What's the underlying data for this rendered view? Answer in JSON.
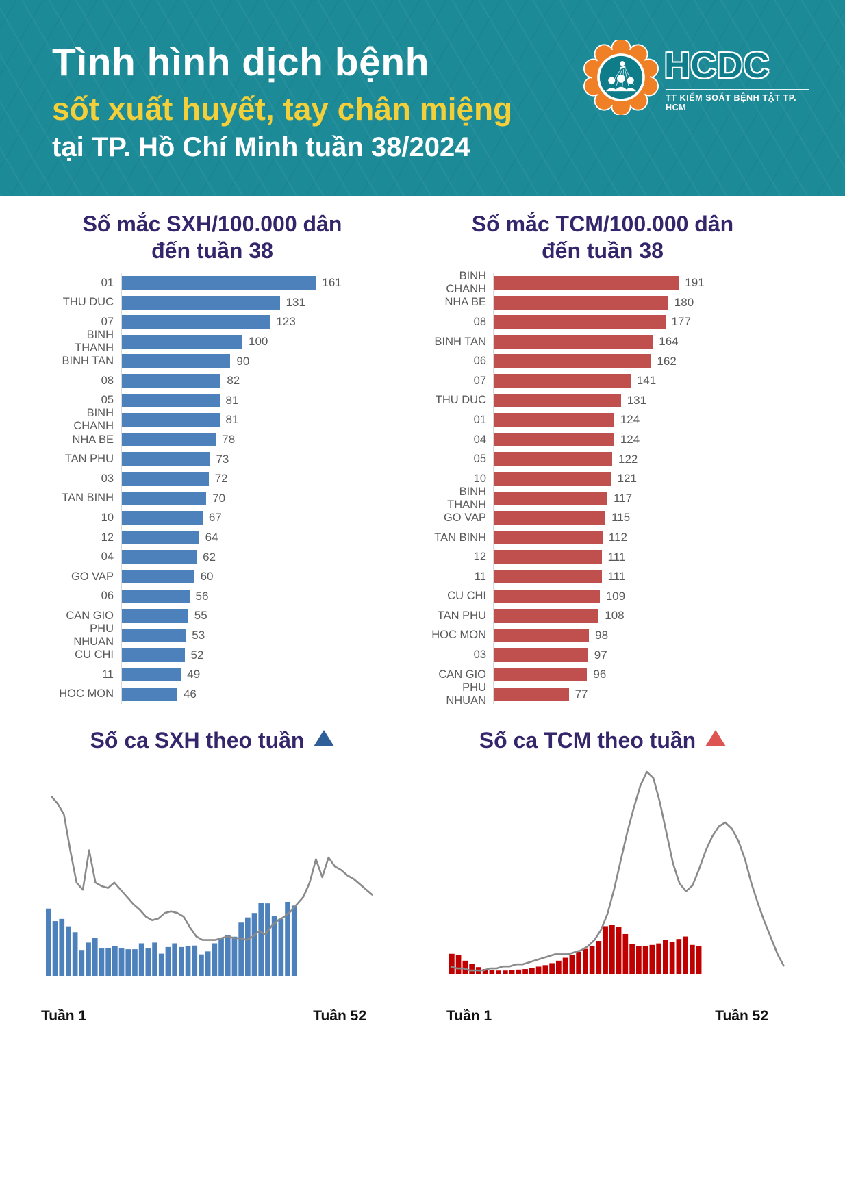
{
  "header": {
    "title_line1": "Tình hình dịch bệnh",
    "title_line2": "sốt xuất huyết, tay chân miệng",
    "title_line3": "tại TP. Hồ Chí Minh tuần 38/2024",
    "logo": {
      "name": "HCDC",
      "subtitle": "TT KIỂM SOÁT BỆNH TẬT TP. HCM",
      "mark": "people-group-icon"
    }
  },
  "colors": {
    "header_teal": "#1d8a97",
    "title_yellow": "#f3cf3a",
    "title_purple": "#35256b",
    "bar_blue": "#4d81bc",
    "bar_red_muted": "#c0504d",
    "bar_red_deep": "#c00000",
    "trend_line_gray": "#8a8a8a",
    "label_gray": "#595959",
    "triangle_blue": "#2f5f98",
    "triangle_red": "#dd5452",
    "logo_orange": "#f08026",
    "logo_teal": "#0e7c8a"
  },
  "chart_data": [
    {
      "type": "bar",
      "orientation": "horizontal",
      "title_line1": "Số mắc SXH/100.000 dân",
      "title_line2": "đến tuần 38",
      "categories": [
        "01",
        "THU DUC",
        "07",
        "BINH THANH",
        "BINH TAN",
        "08",
        "05",
        "BINH CHANH",
        "NHA BE",
        "TAN PHU",
        "03",
        "TAN BINH",
        "10",
        "12",
        "04",
        "GO VAP",
        "06",
        "CAN GIO",
        "PHU NHUAN",
        "CU CHI",
        "11",
        "HOC MON"
      ],
      "values": [
        161,
        131,
        123,
        100,
        90,
        82,
        81,
        81,
        78,
        73,
        72,
        70,
        67,
        64,
        62,
        60,
        56,
        55,
        53,
        52,
        49,
        46
      ],
      "bar_color": "#4d81bc",
      "xlim": [
        0,
        200
      ],
      "grid": false,
      "value_labels": true
    },
    {
      "type": "bar",
      "orientation": "horizontal",
      "title_line1": "Số mắc TCM/100.000 dân",
      "title_line2": "đến tuần 38",
      "categories": [
        "BINH CHANH",
        "NHA BE",
        "08",
        "BINH TAN",
        "06",
        "07",
        "THU DUC",
        "01",
        "04",
        "05",
        "10",
        "BINH THANH",
        "GO VAP",
        "TAN BINH",
        "12",
        "11",
        "CU CHI",
        "TAN PHU",
        "HOC MON",
        "03",
        "CAN GIO",
        "PHU NHUAN"
      ],
      "values": [
        191,
        180,
        177,
        164,
        162,
        141,
        131,
        124,
        124,
        122,
        121,
        117,
        115,
        112,
        111,
        111,
        109,
        108,
        98,
        97,
        96,
        77
      ],
      "bar_color": "#c0504d",
      "xlim": [
        0,
        220
      ],
      "grid": false,
      "value_labels": true
    },
    {
      "type": "bar+line",
      "title": "Số ca SXH theo tuần",
      "x_weeks": 52,
      "bars_weeks": 38,
      "xlabel_left": "Tuần 1",
      "xlabel_right": "Tuần 52",
      "bar_color": "#4d81bc",
      "line_color": "#8a8a8a",
      "bars_relative": [
        91,
        74,
        77,
        67,
        59,
        35,
        45,
        51,
        37,
        38,
        40,
        37,
        36,
        36,
        44,
        37,
        45,
        30,
        39,
        44,
        39,
        40,
        41,
        29,
        33,
        44,
        51,
        55,
        53,
        72,
        79,
        85,
        99,
        98,
        81,
        77,
        100,
        95
      ],
      "line_relative": [
        100,
        96,
        90,
        70,
        52,
        48,
        70,
        52,
        50,
        49,
        52,
        48,
        44,
        40,
        37,
        33,
        31,
        32,
        35,
        36,
        35,
        33,
        27,
        22,
        20,
        20,
        20,
        21,
        22,
        21,
        21,
        20,
        22,
        25,
        23,
        28,
        31,
        33,
        36,
        40,
        44,
        52,
        65,
        55,
        66,
        61,
        59,
        56,
        54,
        51,
        48,
        45
      ]
    },
    {
      "type": "bar+line",
      "title": "Số ca TCM theo tuần",
      "x_weeks": 52,
      "bars_weeks": 38,
      "xlabel_left": "Tuần 1",
      "xlabel_right": "Tuần 52",
      "bar_color": "#c00000",
      "line_color": "#8a8a8a",
      "bars_relative": [
        42,
        40,
        28,
        22,
        15,
        11,
        9,
        8,
        8,
        9,
        10,
        11,
        13,
        16,
        19,
        23,
        28,
        34,
        40,
        46,
        52,
        58,
        68,
        98,
        100,
        96,
        82,
        62,
        58,
        57,
        60,
        63,
        70,
        66,
        72,
        77,
        60,
        58
      ],
      "line_relative": [
        4,
        3,
        3,
        2,
        2,
        2,
        3,
        3,
        4,
        4,
        5,
        5,
        6,
        7,
        8,
        9,
        10,
        10,
        10,
        11,
        12,
        14,
        17,
        22,
        30,
        42,
        56,
        70,
        82,
        93,
        100,
        97,
        85,
        70,
        55,
        45,
        41,
        44,
        52,
        61,
        68,
        73,
        75,
        72,
        66,
        57,
        45,
        35,
        26,
        18,
        10,
        4
      ]
    }
  ]
}
